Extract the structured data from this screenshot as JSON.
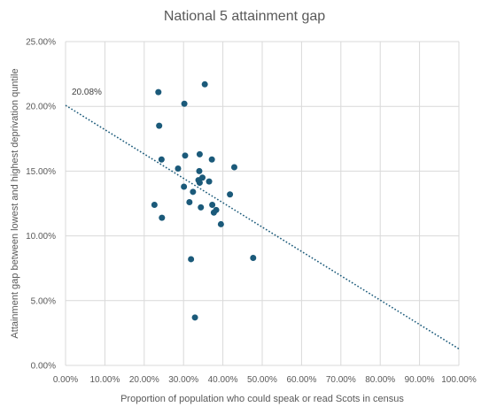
{
  "chart_data": {
    "type": "scatter",
    "title": "National 5 attainment gap",
    "xlabel": "Proportion of population who could speak or read Scots in census",
    "ylabel": "Attainment gap between lowest and highest deprivation quntile",
    "xlim": [
      0,
      1
    ],
    "ylim": [
      0,
      0.25
    ],
    "x_ticks": [
      "0.00%",
      "10.00%",
      "20.00%",
      "30.00%",
      "40.00%",
      "50.00%",
      "60.00%",
      "70.00%",
      "80.00%",
      "90.00%",
      "100.00%"
    ],
    "y_ticks": [
      "0.00%",
      "5.00%",
      "10.00%",
      "15.00%",
      "20.00%",
      "25.00%"
    ],
    "grid": true,
    "legend": "none",
    "marker_color": "#1b5a7a",
    "trendline": {
      "type": "linear",
      "style": "dotted",
      "color": "#1b5a7a",
      "intercept": 0.2008,
      "slope": -0.188,
      "label": "20.08%"
    },
    "points": [
      {
        "x": 0.236,
        "y": 0.211
      },
      {
        "x": 0.302,
        "y": 0.202
      },
      {
        "x": 0.354,
        "y": 0.217
      },
      {
        "x": 0.238,
        "y": 0.185
      },
      {
        "x": 0.244,
        "y": 0.159
      },
      {
        "x": 0.304,
        "y": 0.162
      },
      {
        "x": 0.341,
        "y": 0.163
      },
      {
        "x": 0.372,
        "y": 0.159
      },
      {
        "x": 0.286,
        "y": 0.152
      },
      {
        "x": 0.34,
        "y": 0.15
      },
      {
        "x": 0.429,
        "y": 0.153
      },
      {
        "x": 0.338,
        "y": 0.143
      },
      {
        "x": 0.348,
        "y": 0.145
      },
      {
        "x": 0.341,
        "y": 0.141
      },
      {
        "x": 0.365,
        "y": 0.142
      },
      {
        "x": 0.301,
        "y": 0.138
      },
      {
        "x": 0.324,
        "y": 0.134
      },
      {
        "x": 0.418,
        "y": 0.132
      },
      {
        "x": 0.226,
        "y": 0.124
      },
      {
        "x": 0.315,
        "y": 0.126
      },
      {
        "x": 0.373,
        "y": 0.124
      },
      {
        "x": 0.344,
        "y": 0.122
      },
      {
        "x": 0.383,
        "y": 0.12
      },
      {
        "x": 0.377,
        "y": 0.118
      },
      {
        "x": 0.245,
        "y": 0.114
      },
      {
        "x": 0.395,
        "y": 0.109
      },
      {
        "x": 0.319,
        "y": 0.082
      },
      {
        "x": 0.477,
        "y": 0.083
      },
      {
        "x": 0.329,
        "y": 0.037
      }
    ]
  }
}
